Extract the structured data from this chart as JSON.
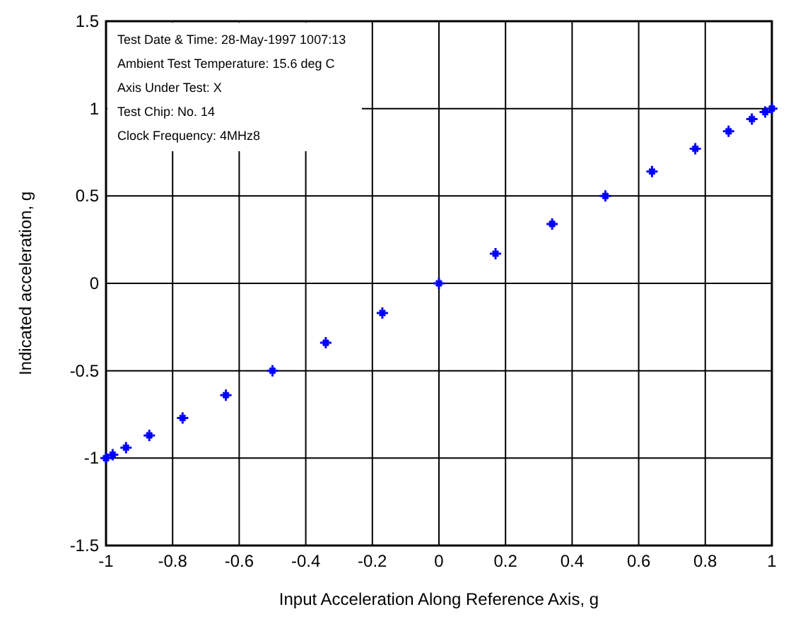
{
  "chart_data": {
    "type": "scatter",
    "xlabel": "Input Acceleration Along Reference Axis, g",
    "ylabel": "Indicated acceleration, g",
    "x": [
      -1,
      -0.98,
      -0.94,
      -0.87,
      -0.77,
      -0.64,
      -0.5,
      -0.34,
      -0.17,
      0,
      0.17,
      0.34,
      0.5,
      0.64,
      0.77,
      0.87,
      0.94,
      0.98,
      1
    ],
    "series": [
      {
        "color": "#0000ff",
        "values": [
          -1,
          -0.98,
          -0.94,
          -0.87,
          -0.77,
          -0.64,
          -0.5,
          -0.34,
          -0.17,
          0,
          0.17,
          0.34,
          0.5,
          0.64,
          0.77,
          0.87,
          0.94,
          0.98,
          1
        ]
      }
    ],
    "xlim": [
      -1,
      1
    ],
    "xticks": [
      -1,
      -0.8,
      -0.6,
      -0.4,
      -0.2,
      0,
      0.2,
      0.4,
      0.6,
      0.8,
      1
    ],
    "ylim": [
      -1.5,
      1.5
    ],
    "yticks": [
      -1.5,
      -1,
      -0.5,
      0,
      0.5,
      1,
      1.5
    ],
    "grid": true,
    "marker": "cross",
    "annotations": [
      "Test Date & Time: 28-May-1997 1007:13",
      "Ambient Test Temperature: 15.6 deg C",
      "Axis Under Test: X",
      "Test Chip: No. 14",
      "Clock Frequency: 4MHz8"
    ]
  }
}
